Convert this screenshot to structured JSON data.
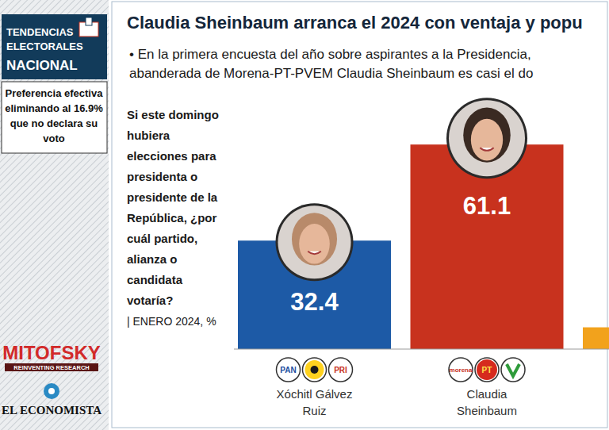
{
  "sidebar": {
    "header": [
      "TENDENCIAS",
      "ELECTORALES",
      "NACIONAL"
    ],
    "note": "Preferencia efectiva eliminando al 16.9% que no declara su voto",
    "pollster": "MITOFSKY",
    "pollster_tagline": "REINVENTING RESEARCH",
    "publisher": "EL ECONOMISTA"
  },
  "chart_data": {
    "type": "bar",
    "title": "Claudia Sheinbaum arranca el 2024 con ventaja y popu",
    "subtitle": [
      "• En la primera encuesta del año sobre aspirantes a la Presidencia,",
      "abanderada de Morena-PT-PVEM Claudia Sheinbaum es casi el do"
    ],
    "question": "Si este domingo hubiera elecciones para presidenta o presidente de la República, ¿por cuál partido, alianza o candidata votaría?",
    "period": "| ENERO 2024, %",
    "categories": [
      "Xóchitl Gálvez Ruiz",
      "Claudia Sheinbaum",
      null
    ],
    "values": [
      32.4,
      61.1,
      6.5
    ],
    "value_labels": [
      "32.4",
      "61.1",
      null
    ],
    "colors": [
      "#1d5aa6",
      "#c8321e",
      "#f2a21c"
    ],
    "ylim": [
      0,
      66
    ],
    "grid": false,
    "data_labels": true,
    "tick_labels": "x",
    "party_logos": [
      [
        "PAN",
        "PRI"
      ],
      [
        "morena",
        "PT"
      ]
    ]
  }
}
